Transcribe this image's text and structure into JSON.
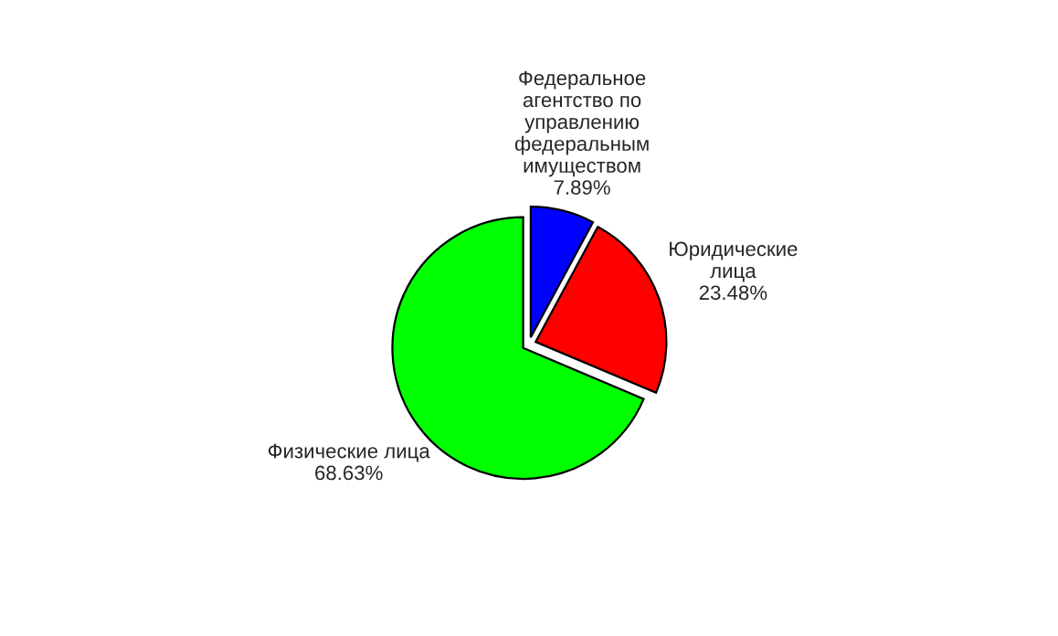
{
  "chart_data": {
    "type": "pie",
    "categories": [
      "Федеральное\nагентство по\nуправлению\nфедеральным\nимуществом",
      "Юридические\nлица",
      "Физические лица"
    ],
    "values": [
      7.89,
      23.48,
      68.63
    ],
    "value_labels": [
      "7.89%",
      "23.48%",
      "68.63%"
    ],
    "colors": [
      "#0000ff",
      "#ff0000",
      "#00ff00"
    ],
    "legend": false
  }
}
